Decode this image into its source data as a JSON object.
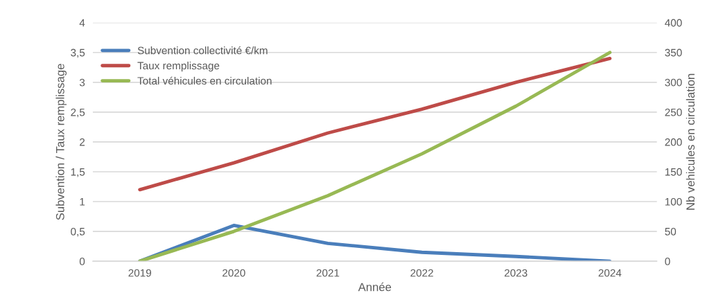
{
  "chart_data": {
    "type": "line",
    "xlabel": "Année",
    "ylabel": "Subvention / Taux remplissage",
    "y2label": "Nb vehicules en circulation",
    "categories": [
      "2019",
      "2020",
      "2021",
      "2022",
      "2023",
      "2024"
    ],
    "series": [
      {
        "name": "Subvention collectivité €/km",
        "color": "#4a7ebb",
        "values": [
          0,
          0.6,
          0.3,
          0.15,
          0.08,
          0
        ]
      },
      {
        "name": "Taux remplissage",
        "color": "#be4b48",
        "values": [
          1.2,
          1.65,
          2.15,
          2.55,
          3.0,
          3.4
        ]
      },
      {
        "name": "Total véhicules en circulation",
        "color": "#98b954",
        "axis": "y2",
        "values": [
          0,
          50,
          110,
          180,
          260,
          350
        ]
      }
    ],
    "ylim": [
      0,
      4
    ],
    "yticks": [
      0,
      {
        "value": 0.5,
        "label": "0,5"
      },
      1,
      {
        "value": 1.5,
        "label": "1,5"
      },
      2,
      {
        "value": 2.5,
        "label": "2,5"
      },
      3,
      {
        "value": 3.5,
        "label": "3,5"
      },
      4
    ],
    "y2lim": [
      0,
      400
    ],
    "y2ticks": [
      0,
      50,
      100,
      150,
      200,
      250,
      300,
      350,
      400
    ],
    "grid": "y",
    "legend": "top left",
    "marker": "none",
    "line_style": "solid"
  }
}
